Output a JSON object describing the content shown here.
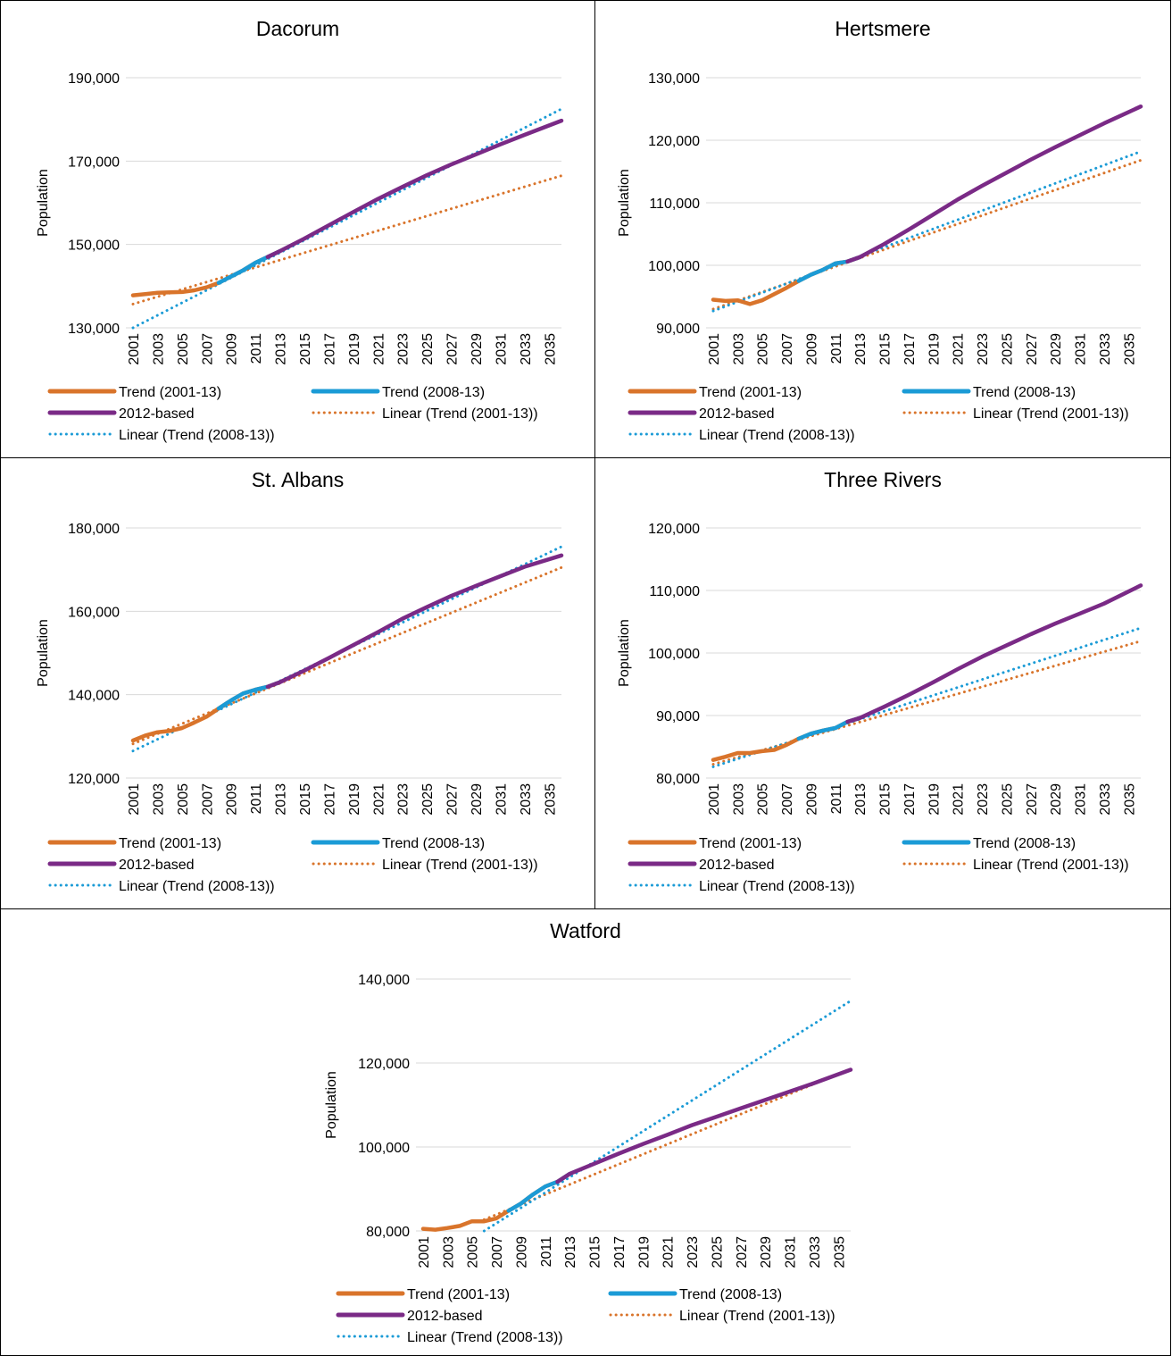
{
  "chart_data": [
    {
      "type": "line",
      "title": "Dacorum",
      "ylabel": "Population",
      "ylim": [
        130000,
        190000
      ],
      "yticks": [
        130000,
        150000,
        170000,
        190000
      ],
      "ytick_labels": [
        "130,000",
        "150,000",
        "170,000",
        "190,000"
      ],
      "xlim": [
        2001,
        2036
      ],
      "xticks": [
        "2001",
        "2003",
        "2005",
        "2007",
        "2009",
        "2011",
        "2013",
        "2015",
        "2017",
        "2019",
        "2021",
        "2023",
        "2025",
        "2027",
        "2029",
        "2031",
        "2033",
        "2035"
      ],
      "grid": true,
      "legend": "bottom",
      "series": [
        {
          "name": "Trend (2001-13)",
          "color": "#d9742b",
          "style": "solid",
          "x": [
            2001,
            2002,
            2003,
            2004,
            2005,
            2006,
            2007,
            2008,
            2009,
            2010,
            2011,
            2012,
            2013
          ],
          "y": [
            137800,
            138100,
            138400,
            138500,
            138600,
            139000,
            139700,
            140800,
            142300,
            143800,
            145600,
            147000,
            148400
          ]
        },
        {
          "name": "Trend (2008-13)",
          "color": "#1b9bd6",
          "style": "solid",
          "x": [
            2008,
            2009,
            2010,
            2011,
            2012,
            2013
          ],
          "y": [
            140800,
            142300,
            143800,
            145600,
            147000,
            148400
          ]
        },
        {
          "name": "2012-based",
          "color": "#7a2a86",
          "style": "solid",
          "x": [
            2012,
            2013,
            2015,
            2017,
            2019,
            2021,
            2023,
            2025,
            2027,
            2029,
            2031,
            2033,
            2036
          ],
          "y": [
            147000,
            148400,
            151400,
            154600,
            157800,
            160900,
            163800,
            166600,
            169200,
            171600,
            174000,
            176300,
            179700
          ]
        },
        {
          "name": "Linear (Trend (2001-13))",
          "color": "#d9742b",
          "style": "dotted",
          "x": [
            2001,
            2036
          ],
          "y": [
            135700,
            166500
          ]
        },
        {
          "name": "Linear (Trend (2008-13))",
          "color": "#1b9bd6",
          "style": "dotted",
          "x": [
            2001,
            2036
          ],
          "y": [
            130000,
            182500
          ]
        }
      ]
    },
    {
      "type": "line",
      "title": "Hertsmere",
      "ylabel": "Population",
      "ylim": [
        90000,
        130000
      ],
      "yticks": [
        90000,
        100000,
        110000,
        120000,
        130000
      ],
      "ytick_labels": [
        "90,000",
        "100,000",
        "110,000",
        "120,000",
        "130,000"
      ],
      "xlim": [
        2001,
        2036
      ],
      "xticks": [
        "2001",
        "2003",
        "2005",
        "2007",
        "2009",
        "2011",
        "2013",
        "2015",
        "2017",
        "2019",
        "2021",
        "2023",
        "2025",
        "2027",
        "2029",
        "2031",
        "2033",
        "2035"
      ],
      "grid": true,
      "legend": "bottom",
      "series": [
        {
          "name": "Trend (2001-13)",
          "color": "#d9742b",
          "style": "solid",
          "x": [
            2001,
            2002,
            2003,
            2004,
            2005,
            2006,
            2007,
            2008,
            2009,
            2010,
            2011,
            2012,
            2013
          ],
          "y": [
            94500,
            94300,
            94400,
            93800,
            94400,
            95400,
            96400,
            97500,
            98500,
            99300,
            100300,
            100600,
            101300
          ]
        },
        {
          "name": "Trend (2008-13)",
          "color": "#1b9bd6",
          "style": "solid",
          "x": [
            2008,
            2009,
            2010,
            2011,
            2012,
            2013
          ],
          "y": [
            97500,
            98500,
            99300,
            100300,
            100600,
            101300
          ]
        },
        {
          "name": "2012-based",
          "color": "#7a2a86",
          "style": "solid",
          "x": [
            2012,
            2013,
            2015,
            2017,
            2019,
            2021,
            2023,
            2025,
            2027,
            2029,
            2031,
            2033,
            2036
          ],
          "y": [
            100600,
            101300,
            103400,
            105700,
            108100,
            110500,
            112700,
            114800,
            116900,
            118900,
            120800,
            122700,
            125400
          ]
        },
        {
          "name": "Linear (Trend (2001-13))",
          "color": "#d9742b",
          "style": "dotted",
          "x": [
            2001,
            2036
          ],
          "y": [
            93000,
            116800
          ]
        },
        {
          "name": "Linear (Trend (2008-13))",
          "color": "#1b9bd6",
          "style": "dotted",
          "x": [
            2001,
            2036
          ],
          "y": [
            92700,
            118200
          ]
        }
      ]
    },
    {
      "type": "line",
      "title": "St. Albans",
      "ylabel": "Population",
      "ylim": [
        120000,
        180000
      ],
      "yticks": [
        120000,
        140000,
        160000,
        180000
      ],
      "ytick_labels": [
        "120,000",
        "140,000",
        "160,000",
        "180,000"
      ],
      "xlim": [
        2001,
        2036
      ],
      "xticks": [
        "2001",
        "2003",
        "2005",
        "2007",
        "2009",
        "2011",
        "2013",
        "2015",
        "2017",
        "2019",
        "2021",
        "2023",
        "2025",
        "2027",
        "2029",
        "2031",
        "2033",
        "2035"
      ],
      "grid": true,
      "legend": "bottom",
      "series": [
        {
          "name": "Trend (2001-13)",
          "color": "#d9742b",
          "style": "solid",
          "x": [
            2001,
            2002,
            2003,
            2004,
            2005,
            2006,
            2007,
            2008,
            2009,
            2010,
            2011,
            2012,
            2013
          ],
          "y": [
            129000,
            130200,
            131000,
            131300,
            132000,
            133300,
            134700,
            136700,
            138600,
            140300,
            141200,
            141900,
            143000
          ]
        },
        {
          "name": "Trend (2008-13)",
          "color": "#1b9bd6",
          "style": "solid",
          "x": [
            2008,
            2009,
            2010,
            2011,
            2012,
            2013
          ],
          "y": [
            136700,
            138600,
            140300,
            141200,
            141900,
            143000
          ]
        },
        {
          "name": "2012-based",
          "color": "#7a2a86",
          "style": "solid",
          "x": [
            2012,
            2013,
            2015,
            2017,
            2019,
            2021,
            2023,
            2025,
            2027,
            2029,
            2031,
            2033,
            2036
          ],
          "y": [
            141900,
            143000,
            145800,
            148800,
            151900,
            155000,
            158200,
            161000,
            163700,
            166100,
            168400,
            170700,
            173400
          ]
        },
        {
          "name": "Linear (Trend (2001-13))",
          "color": "#d9742b",
          "style": "dotted",
          "x": [
            2001,
            2036
          ],
          "y": [
            128200,
            170500
          ]
        },
        {
          "name": "Linear (Trend (2008-13))",
          "color": "#1b9bd6",
          "style": "dotted",
          "x": [
            2001,
            2036
          ],
          "y": [
            126500,
            175500
          ]
        }
      ]
    },
    {
      "type": "line",
      "title": "Three Rivers",
      "ylabel": "Population",
      "ylim": [
        80000,
        120000
      ],
      "yticks": [
        80000,
        90000,
        100000,
        110000,
        120000
      ],
      "ytick_labels": [
        "80,000",
        "90,000",
        "100,000",
        "110,000",
        "120,000"
      ],
      "xlim": [
        2001,
        2036
      ],
      "xticks": [
        "2001",
        "2003",
        "2005",
        "2007",
        "2009",
        "2011",
        "2013",
        "2015",
        "2017",
        "2019",
        "2021",
        "2023",
        "2025",
        "2027",
        "2029",
        "2031",
        "2033",
        "2035"
      ],
      "grid": true,
      "legend": "bottom",
      "series": [
        {
          "name": "Trend (2001-13)",
          "color": "#d9742b",
          "style": "solid",
          "x": [
            2001,
            2002,
            2003,
            2004,
            2005,
            2006,
            2007,
            2008,
            2009,
            2010,
            2011,
            2012,
            2013
          ],
          "y": [
            82900,
            83400,
            84000,
            84000,
            84300,
            84500,
            85300,
            86300,
            87100,
            87600,
            88000,
            89000,
            89600
          ]
        },
        {
          "name": "Trend (2008-13)",
          "color": "#1b9bd6",
          "style": "solid",
          "x": [
            2008,
            2009,
            2010,
            2011,
            2012,
            2013
          ],
          "y": [
            86300,
            87100,
            87600,
            88000,
            89000,
            89600
          ]
        },
        {
          "name": "2012-based",
          "color": "#7a2a86",
          "style": "solid",
          "x": [
            2012,
            2013,
            2015,
            2017,
            2019,
            2021,
            2023,
            2025,
            2027,
            2029,
            2031,
            2033,
            2036
          ],
          "y": [
            89000,
            89600,
            91400,
            93300,
            95300,
            97400,
            99400,
            101200,
            103000,
            104700,
            106300,
            107900,
            110800
          ]
        },
        {
          "name": "Linear (Trend (2001-13))",
          "color": "#d9742b",
          "style": "dotted",
          "x": [
            2001,
            2036
          ],
          "y": [
            82200,
            101900
          ]
        },
        {
          "name": "Linear (Trend (2008-13))",
          "color": "#1b9bd6",
          "style": "dotted",
          "x": [
            2001,
            2036
          ],
          "y": [
            81800,
            104000
          ]
        }
      ]
    },
    {
      "type": "line",
      "title": "Watford",
      "ylabel": "Population",
      "ylim": [
        80000,
        140000
      ],
      "yticks": [
        80000,
        100000,
        120000,
        140000
      ],
      "ytick_labels": [
        "80,000",
        "100,000",
        "120,000",
        "140,000"
      ],
      "xlim": [
        2001,
        2036
      ],
      "xticks": [
        "2001",
        "2003",
        "2005",
        "2007",
        "2009",
        "2011",
        "2013",
        "2015",
        "2017",
        "2019",
        "2021",
        "2023",
        "2025",
        "2027",
        "2029",
        "2031",
        "2033",
        "2035"
      ],
      "grid": true,
      "legend": "bottom",
      "series": [
        {
          "name": "Trend (2001-13)",
          "color": "#d9742b",
          "style": "solid",
          "x": [
            2001,
            2002,
            2003,
            2004,
            2005,
            2006,
            2007,
            2008,
            2009,
            2010,
            2011,
            2012,
            2013
          ],
          "y": [
            80500,
            80300,
            80700,
            81200,
            82300,
            82300,
            83000,
            84800,
            86500,
            88700,
            90600,
            91700,
            93600
          ]
        },
        {
          "name": "Trend (2008-13)",
          "color": "#1b9bd6",
          "style": "solid",
          "x": [
            2008,
            2009,
            2010,
            2011,
            2012,
            2013
          ],
          "y": [
            84800,
            86500,
            88700,
            90600,
            91700,
            93600
          ]
        },
        {
          "name": "2012-based",
          "color": "#7a2a86",
          "style": "solid",
          "x": [
            2012,
            2013,
            2015,
            2017,
            2019,
            2021,
            2023,
            2025,
            2027,
            2029,
            2031,
            2033,
            2036
          ],
          "y": [
            91700,
            93600,
            96000,
            98400,
            100700,
            102900,
            105200,
            107200,
            109200,
            111200,
            113200,
            115200,
            118400
          ]
        },
        {
          "name": "Linear (Trend (2001-13))",
          "color": "#d9742b",
          "style": "dotted",
          "x": [
            2006,
            2036
          ],
          "y": [
            82700,
            118600
          ]
        },
        {
          "name": "Linear (Trend (2008-13))",
          "color": "#1b9bd6",
          "style": "dotted",
          "x": [
            2006,
            2036
          ],
          "y": [
            80000,
            134800
          ]
        }
      ]
    }
  ]
}
